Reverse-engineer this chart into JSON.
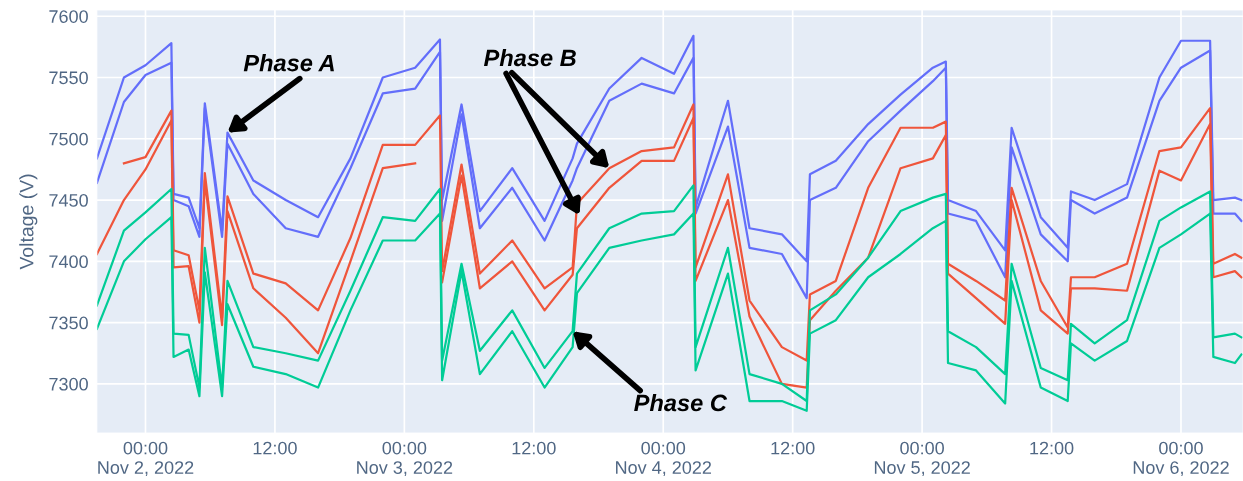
{
  "chart_data": {
    "type": "line",
    "ylabel": "Voltage (V)",
    "x": [
      "2022-11-01T19:30",
      "2022-11-01T22:00",
      "2022-11-02T00:00",
      "2022-11-02T02:24",
      "2022-11-02T02:36",
      "2022-11-02T04:00",
      "2022-11-02T05:00",
      "2022-11-02T05:30",
      "2022-11-02T07:06",
      "2022-11-02T07:36",
      "2022-11-02T10:00",
      "2022-11-02T13:00",
      "2022-11-02T16:00",
      "2022-11-02T19:00",
      "2022-11-02T22:00",
      "2022-11-03T01:00",
      "2022-11-03T03:18",
      "2022-11-03T03:30",
      "2022-11-03T05:18",
      "2022-11-03T07:00",
      "2022-11-03T10:00",
      "2022-11-03T13:00",
      "2022-11-03T15:36",
      "2022-11-03T16:00",
      "2022-11-03T19:00",
      "2022-11-03T22:00",
      "2022-11-04T01:00",
      "2022-11-04T02:48",
      "2022-11-04T03:00",
      "2022-11-04T06:00",
      "2022-11-04T08:00",
      "2022-11-04T11:00",
      "2022-11-04T13:18",
      "2022-11-04T13:36",
      "2022-11-04T16:00",
      "2022-11-04T19:00",
      "2022-11-04T22:00",
      "2022-11-05T01:00",
      "2022-11-05T02:12",
      "2022-11-05T02:24",
      "2022-11-05T05:00",
      "2022-11-05T07:42",
      "2022-11-05T08:18",
      "2022-11-05T11:00",
      "2022-11-05T13:30",
      "2022-11-05T13:48",
      "2022-11-05T16:00",
      "2022-11-05T19:00",
      "2022-11-05T22:00",
      "2022-11-06T00:00",
      "2022-11-06T02:42",
      "2022-11-06T03:00",
      "2022-11-06T05:00",
      "2022-11-06T05:36"
    ],
    "series": [
      {
        "color": "#636efa",
        "values": [
          7484,
          7550,
          7560,
          7578,
          7455,
          7452,
          7427,
          7529,
          7425,
          7505,
          7466,
          7450,
          7436,
          7484,
          7550,
          7558,
          7581,
          7450,
          7528,
          7441,
          7476,
          7433,
          7484,
          7496,
          7541,
          7566,
          7553,
          7584,
          7444,
          7531,
          7427,
          7422,
          7400,
          7471,
          7482,
          7512,
          7536,
          7558,
          7563,
          7450,
          7441,
          7409,
          7509,
          7436,
          7411,
          7457,
          7450,
          7463,
          7550,
          7580,
          7580,
          7450,
          7452,
          7450
        ]
      },
      {
        "color": "#636efa",
        "values": [
          7464,
          7530,
          7552,
          7562,
          7450,
          7445,
          7420,
          7525,
          7420,
          7496,
          7455,
          7427,
          7420,
          7476,
          7537,
          7541,
          7571,
          7433,
          7520,
          7427,
          7460,
          7417,
          7466,
          7476,
          7531,
          7545,
          7537,
          7566,
          7439,
          7510,
          7411,
          7406,
          7370,
          7450,
          7460,
          7498,
          7523,
          7547,
          7558,
          7439,
          7433,
          7387,
          7493,
          7422,
          7400,
          7450,
          7439,
          7452,
          7531,
          7558,
          7572,
          7439,
          7439,
          7433
        ]
      },
      {
        "color": "#ef553b",
        "values": [
          null,
          7480,
          7485,
          7523,
          7409,
          7405,
          7360,
          7472,
          7354,
          7453,
          7390,
          7382,
          7360,
          7419,
          7495,
          7495,
          7519,
          7392,
          7479,
          7390,
          7417,
          7378,
          7395,
          7447,
          7476,
          7490,
          7493,
          7528,
          7395,
          7471,
          7368,
          7330,
          7319,
          7373,
          7384,
          7460,
          7509,
          7509,
          7514,
          7398,
          7384,
          7368,
          7460,
          7384,
          7346,
          7387,
          7387,
          7398,
          7490,
          7493,
          7525,
          7398,
          7406,
          7403
        ]
      },
      {
        "color": "#ef553b",
        "values": [
          7406,
          7450,
          7475,
          7515,
          7395,
          7396,
          7350,
          7466,
          7348,
          7441,
          7378,
          7354,
          7325,
          7400,
          7476,
          7480,
          null,
          7383,
          7470,
          7378,
          7400,
          7360,
          7389,
          7427,
          7460,
          7482,
          7482,
          7517,
          7384,
          7450,
          7355,
          7300,
          7297,
          7352,
          7376,
          7403,
          7476,
          7484,
          7503,
          7390,
          7370,
          7349,
          7450,
          7360,
          7341,
          7378,
          7378,
          7376,
          7474,
          7466,
          7512,
          7387,
          7392,
          7387
        ]
      },
      {
        "color": "#00cc96",
        "values": [
          7364,
          7425,
          7440,
          7459,
          7341,
          7340,
          7297,
          7411,
          7297,
          7384,
          7330,
          7325,
          7319,
          7376,
          7436,
          7433,
          7459,
          7319,
          7398,
          7327,
          7360,
          7313,
          7343,
          7390,
          7427,
          7439,
          7441,
          7462,
          7330,
          7411,
          7308,
          7300,
          7286,
          7360,
          7373,
          7403,
          7441,
          7452,
          7455,
          7343,
          7330,
          7308,
          7398,
          7313,
          7303,
          7349,
          7333,
          7352,
          7433,
          7444,
          7457,
          7338,
          7341,
          7338
        ]
      },
      {
        "color": "#00cc96",
        "values": [
          7345,
          7400,
          7418,
          7436,
          7322,
          7328,
          7290,
          7391,
          7290,
          7365,
          7314,
          7308,
          7297,
          7360,
          7417,
          7417,
          7439,
          7303,
          7392,
          7308,
          7343,
          7297,
          7330,
          7374,
          7411,
          7417,
          7422,
          7439,
          7311,
          7390,
          7286,
          7286,
          7278,
          7341,
          7352,
          7387,
          7406,
          7427,
          7433,
          7317,
          7311,
          7284,
          7384,
          7297,
          7286,
          7333,
          7319,
          7335,
          7411,
          7422,
          7439,
          7322,
          7317,
          7324
        ]
      }
    ],
    "xlim": [
      "2022-11-01T19:30",
      "2022-11-06T05:45"
    ],
    "xticks": [
      {
        "value": "2022-11-02T00:00",
        "label": "00:00\nNov 2, 2022"
      },
      {
        "value": "2022-11-02T12:00",
        "label": "12:00"
      },
      {
        "value": "2022-11-03T00:00",
        "label": "00:00\nNov 3, 2022"
      },
      {
        "value": "2022-11-03T12:00",
        "label": "12:00"
      },
      {
        "value": "2022-11-04T00:00",
        "label": "00:00\nNov 4, 2022"
      },
      {
        "value": "2022-11-04T12:00",
        "label": "12:00"
      },
      {
        "value": "2022-11-05T00:00",
        "label": "00:00\nNov 5, 2022"
      },
      {
        "value": "2022-11-05T12:00",
        "label": "12:00"
      },
      {
        "value": "2022-11-06T00:00",
        "label": "00:00\nNov 6, 2022"
      }
    ],
    "ylim": [
      7260,
      7605
    ],
    "yticks": [
      7300,
      7350,
      7400,
      7450,
      7500,
      7550,
      7600
    ],
    "grid": true,
    "line_style": "solid",
    "annotations": [
      {
        "text": "Phase A",
        "x": "2022-11-02T07:36",
        "y": 7505
      },
      {
        "text": "Phase B",
        "x": "2022-11-03T19:00",
        "y": 7476
      },
      {
        "text": "Phase C",
        "x": "2022-11-03T15:36",
        "y": 7343
      }
    ]
  }
}
